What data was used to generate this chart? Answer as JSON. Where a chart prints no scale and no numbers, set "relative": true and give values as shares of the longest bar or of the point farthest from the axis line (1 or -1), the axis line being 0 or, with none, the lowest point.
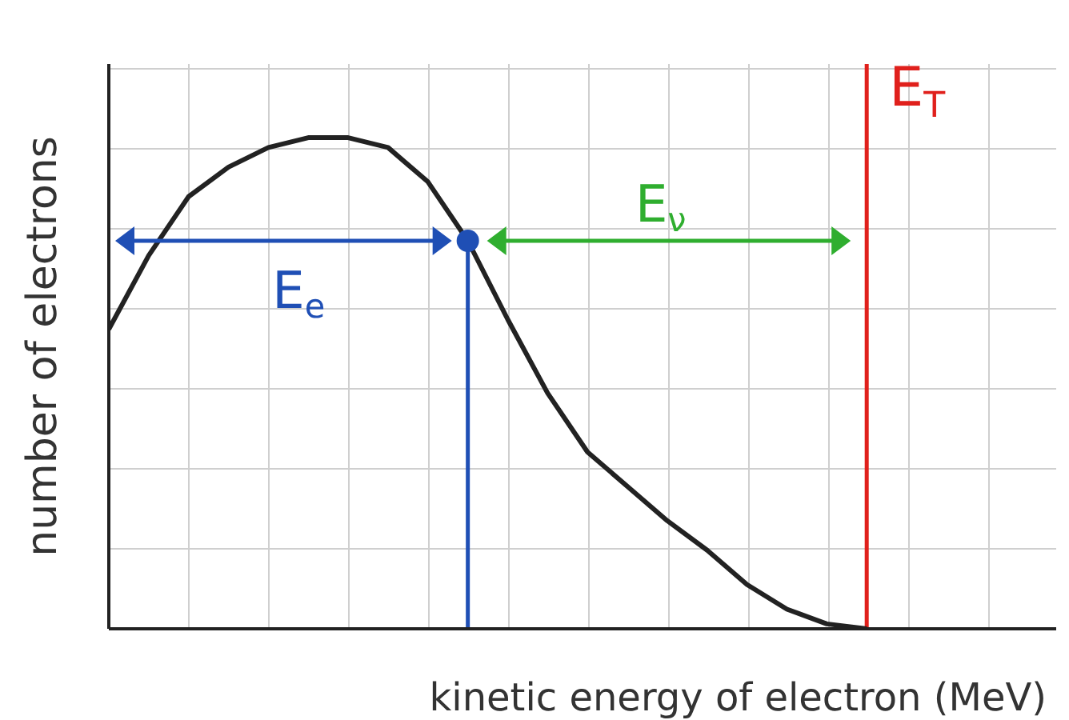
{
  "chart_data": {
    "type": "line",
    "relative": true,
    "xlabel": "kinetic energy of electron (MeV)",
    "ylabel": "number of electrons",
    "grid": true,
    "categories": [
      null,
      null,
      null,
      null,
      null,
      null,
      null,
      null,
      null,
      null,
      null,
      null,
      null,
      null,
      null,
      null,
      null,
      null,
      null,
      null
    ],
    "series": [
      {
        "color": "#222222",
        "values": [
          0.61,
          0.76,
          0.88,
          0.94,
          0.98,
          1.0,
          1.0,
          0.98,
          0.91,
          0.79,
          0.63,
          0.48,
          0.36,
          0.29,
          0.22,
          0.16,
          0.09,
          0.04,
          0.01,
          0.0
        ]
      }
    ],
    "annotations": [
      "E$_{e}$",
      "E$_{ν}$",
      "E$_{T}$"
    ]
  }
}
